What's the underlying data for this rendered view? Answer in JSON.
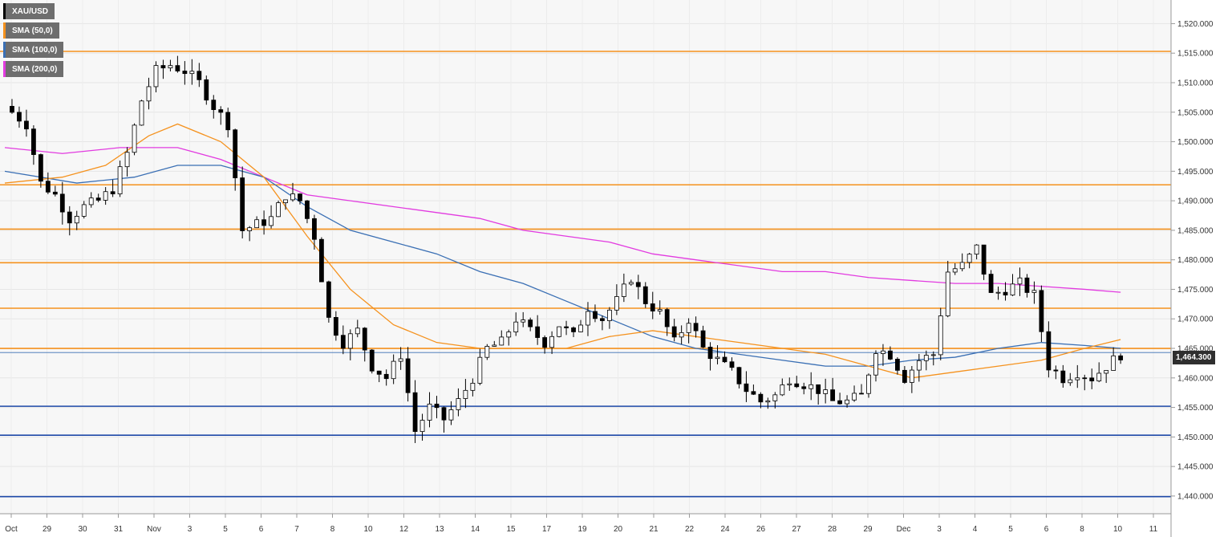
{
  "chart_data": {
    "type": "candlestick",
    "symbol": "XAU/USD",
    "timeframe_note": "4-hour style candles",
    "y_range": [
      1437,
      1524
    ],
    "y_ticks": [
      1440,
      1445,
      1450,
      1455,
      1460,
      1465,
      1470,
      1475,
      1480,
      1485,
      1490,
      1495,
      1500,
      1505,
      1510,
      1515,
      1520
    ],
    "y_tick_labels": [
      "1,440.000",
      "1,445.000",
      "1,450.000",
      "1,455.000",
      "1,460.000",
      "1,465.000",
      "1,470.000",
      "1,475.000",
      "1,480.000",
      "1,485.000",
      "1,490.000",
      "1,495.000",
      "1,500.000",
      "1,505.000",
      "1,510.000",
      "1,515.000",
      "1,520.000"
    ],
    "x_labels": [
      "Oct",
      "29",
      "30",
      "31",
      "Nov",
      "3",
      "5",
      "6",
      "7",
      "8",
      "10",
      "12",
      "13",
      "14",
      "15",
      "17",
      "19",
      "20",
      "21",
      "22",
      "24",
      "26",
      "27",
      "28",
      "29",
      "Dec",
      "3",
      "4",
      "5",
      "6",
      "8",
      "10",
      "11"
    ],
    "current_price": 1464.3,
    "current_price_label": "1,464.300",
    "legend": [
      {
        "label": "XAU/USD",
        "color": "#000000"
      },
      {
        "label": "SMA (50,0)",
        "color": "#f5921e"
      },
      {
        "label": "SMA (100,0)",
        "color": "#3a6fb4"
      },
      {
        "label": "SMA (200,0)",
        "color": "#e23be0"
      }
    ],
    "resistance_levels": [
      1515.3,
      1492.7,
      1485.2,
      1479.5,
      1471.8,
      1465.0
    ],
    "support_levels": [
      1455.2,
      1450.3,
      1439.9
    ],
    "close_path": [
      [
        0,
        1506
      ],
      [
        3,
        1503
      ],
      [
        5,
        1493
      ],
      [
        7,
        1491
      ],
      [
        9,
        1487
      ],
      [
        11,
        1489
      ],
      [
        13,
        1490
      ],
      [
        15,
        1492
      ],
      [
        17,
        1498
      ],
      [
        19,
        1507
      ],
      [
        21,
        1512
      ],
      [
        23,
        1513
      ],
      [
        25,
        1512
      ],
      [
        27,
        1510
      ],
      [
        29,
        1506
      ],
      [
        31,
        1503
      ],
      [
        33,
        1485
      ],
      [
        35,
        1486
      ],
      [
        37,
        1487
      ],
      [
        39,
        1491
      ],
      [
        41,
        1490
      ],
      [
        43,
        1484
      ],
      [
        45,
        1470
      ],
      [
        47,
        1466
      ],
      [
        49,
        1468
      ],
      [
        51,
        1462
      ],
      [
        53,
        1460
      ],
      [
        55,
        1464
      ],
      [
        57,
        1451
      ],
      [
        59,
        1455
      ],
      [
        61,
        1453
      ],
      [
        63,
        1456
      ],
      [
        65,
        1460
      ],
      [
        67,
        1465
      ],
      [
        69,
        1466
      ],
      [
        71,
        1470
      ],
      [
        73,
        1468
      ],
      [
        75,
        1466
      ],
      [
        77,
        1469
      ],
      [
        79,
        1467
      ],
      [
        81,
        1472
      ],
      [
        83,
        1470
      ],
      [
        85,
        1473
      ],
      [
        87,
        1477
      ],
      [
        89,
        1473
      ],
      [
        91,
        1471
      ],
      [
        93,
        1466
      ],
      [
        95,
        1470
      ],
      [
        97,
        1465
      ],
      [
        99,
        1463
      ],
      [
        101,
        1461
      ],
      [
        103,
        1458
      ],
      [
        105,
        1456
      ],
      [
        107,
        1457
      ],
      [
        109,
        1460
      ],
      [
        111,
        1459
      ],
      [
        113,
        1458
      ],
      [
        115,
        1456
      ],
      [
        117,
        1456
      ],
      [
        119,
        1457
      ],
      [
        121,
        1465
      ],
      [
        123,
        1464
      ],
      [
        125,
        1460
      ],
      [
        127,
        1463
      ],
      [
        129,
        1464
      ],
      [
        131,
        1478
      ],
      [
        133,
        1479
      ],
      [
        135,
        1482
      ],
      [
        137,
        1474
      ],
      [
        139,
        1475
      ],
      [
        141,
        1476
      ],
      [
        143,
        1474
      ],
      [
        145,
        1462
      ],
      [
        147,
        1460
      ],
      [
        149,
        1461
      ],
      [
        151,
        1460
      ],
      [
        153,
        1462
      ],
      [
        155,
        1464
      ]
    ],
    "sma50": [
      [
        0,
        1493
      ],
      [
        8,
        1494
      ],
      [
        14,
        1496
      ],
      [
        20,
        1501
      ],
      [
        24,
        1503
      ],
      [
        30,
        1500
      ],
      [
        36,
        1494
      ],
      [
        42,
        1484
      ],
      [
        48,
        1475
      ],
      [
        54,
        1469
      ],
      [
        60,
        1466
      ],
      [
        66,
        1465
      ],
      [
        72,
        1465
      ],
      [
        78,
        1465
      ],
      [
        84,
        1467
      ],
      [
        90,
        1468
      ],
      [
        96,
        1467
      ],
      [
        102,
        1466
      ],
      [
        108,
        1465
      ],
      [
        114,
        1464
      ],
      [
        120,
        1462
      ],
      [
        126,
        1460
      ],
      [
        132,
        1461
      ],
      [
        138,
        1462
      ],
      [
        144,
        1463
      ],
      [
        150,
        1465
      ],
      [
        155,
        1466.5
      ]
    ],
    "sma100": [
      [
        0,
        1495
      ],
      [
        10,
        1493
      ],
      [
        18,
        1494
      ],
      [
        24,
        1496
      ],
      [
        30,
        1496
      ],
      [
        36,
        1494
      ],
      [
        42,
        1489
      ],
      [
        48,
        1485
      ],
      [
        54,
        1483
      ],
      [
        60,
        1481
      ],
      [
        66,
        1478
      ],
      [
        72,
        1476
      ],
      [
        78,
        1473
      ],
      [
        84,
        1470
      ],
      [
        90,
        1467
      ],
      [
        96,
        1465
      ],
      [
        102,
        1464
      ],
      [
        108,
        1463
      ],
      [
        114,
        1462
      ],
      [
        120,
        1462
      ],
      [
        126,
        1463
      ],
      [
        132,
        1463.5
      ],
      [
        138,
        1465
      ],
      [
        144,
        1466
      ],
      [
        150,
        1465.5
      ],
      [
        155,
        1465
      ]
    ],
    "sma200": [
      [
        0,
        1499
      ],
      [
        8,
        1498
      ],
      [
        16,
        1499
      ],
      [
        24,
        1499
      ],
      [
        30,
        1497
      ],
      [
        36,
        1494
      ],
      [
        42,
        1491
      ],
      [
        48,
        1490
      ],
      [
        54,
        1489
      ],
      [
        60,
        1488
      ],
      [
        66,
        1487
      ],
      [
        72,
        1485
      ],
      [
        78,
        1484
      ],
      [
        84,
        1483
      ],
      [
        90,
        1481
      ],
      [
        96,
        1480
      ],
      [
        102,
        1479
      ],
      [
        108,
        1478
      ],
      [
        114,
        1478
      ],
      [
        120,
        1477
      ],
      [
        126,
        1476.5
      ],
      [
        132,
        1476
      ],
      [
        138,
        1476
      ],
      [
        144,
        1475.5
      ],
      [
        150,
        1475
      ],
      [
        155,
        1474.5
      ]
    ]
  }
}
